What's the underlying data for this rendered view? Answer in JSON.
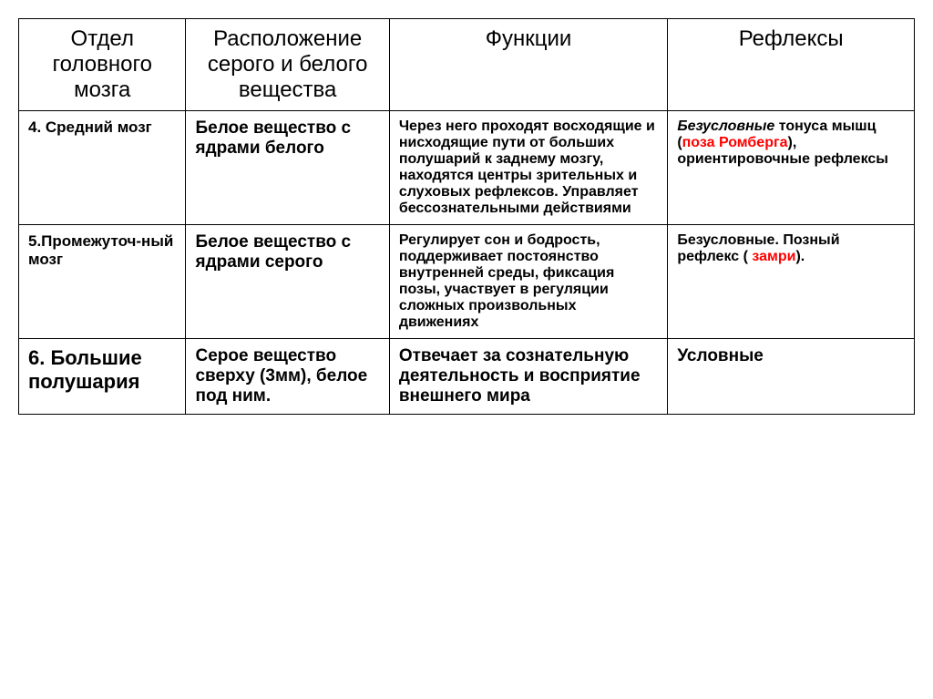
{
  "table": {
    "headers": {
      "col1": "Отдел головного мозга",
      "col2": "Расположение серого и белого вещества",
      "col3": "Функции",
      "col4": "Рефлексы"
    },
    "rows": [
      {
        "label": "4. Средний мозг",
        "substance": "Белое вещество с ядрами белого",
        "functions": "Через него проходят восходящие и нисходящие пути от больших полушарий к заднему мозгу, находятся центры зрительных и слуховых рефлексов. Управляет бессознательными действиями",
        "reflex_pre": "Безусловные",
        "reflex_mid": " тонуса мышц (",
        "reflex_red": "поза Ромберга",
        "reflex_post": "), ориентировочные рефлексы"
      },
      {
        "label": "5.Промежуточ-ный мозг",
        "substance": "Белое вещество с ядрами серого",
        "functions": " Регулирует сон и бодрость, поддерживает постоянство внутренней среды, фиксация позы, участвует в регуляции сложных произвольных движениях",
        "reflex_pre": "Безусловные. Позный рефлекс ( ",
        "reflex_red": "замри",
        "reflex_post": ")."
      },
      {
        "label": "6. Большие полушария",
        "substance": "Серое вещество сверху (3мм), белое под ним.",
        "functions": "Отвечает за сознательную деятельность и восприятие внешнего мира",
        "reflex": "Условные"
      }
    ]
  },
  "colors": {
    "text": "#000000",
    "highlight": "#ff0000",
    "border": "#000000",
    "background": "#ffffff"
  },
  "fonts": {
    "header_size": 24,
    "row_label_size": 17,
    "row_label_large_size": 22,
    "cell_bold_size": 19,
    "cell_text_size": 16
  }
}
